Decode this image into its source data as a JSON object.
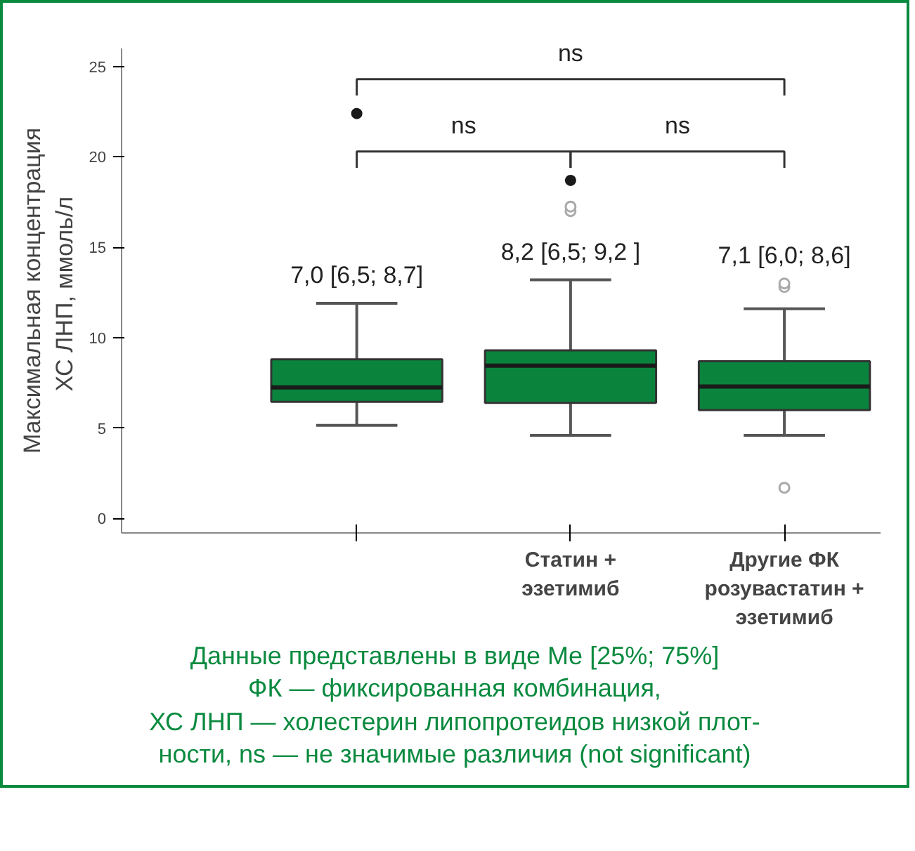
{
  "chart_data": {
    "type": "box",
    "ylabel": "Максимальная концентрация\nХС ЛНП,  ммоль/л",
    "categories": [
      null,
      "Статин +\nэзетимиб",
      "Другие ФК\nрозувастатин +\nэзетимиб"
    ],
    "series": [
      {
        "color": "#0a843d",
        "value_labels": [
          "7,0 [6,5; 8,7]",
          "8,2 [6,5; 9,2 ]",
          "7,1 [6,0; 8,6]"
        ],
        "boxes": [
          {
            "low": 5.15,
            "q1": 6.45,
            "median": 7.25,
            "q3": 8.8,
            "high": 11.9
          },
          {
            "low": 4.6,
            "q1": 6.4,
            "median": 8.45,
            "q3": 9.3,
            "high": 13.2,
            "outliers": [
              17.0,
              17.25
            ]
          },
          {
            "low": 4.6,
            "q1": 6.0,
            "median": 7.3,
            "q3": 8.7,
            "high": 11.6,
            "outliers": [
              12.8,
              13.0,
              1.7
            ]
          }
        ]
      },
      {
        "type": "scatter",
        "color": "#1a1a1a",
        "marker": "circle",
        "values": [
          22.4,
          18.7,
          null
        ]
      }
    ],
    "ylim": [
      -0.8,
      26
    ],
    "yticks": [
      0,
      5,
      10,
      15,
      20,
      25
    ],
    "grid": false,
    "annotations": [
      "ns",
      "ns",
      "ns",
      "Данные представлены в виде Me [25%; 75%]\nФК — фиксированная комбинация,\nХС ЛНП — холестерин липопротеидов низкой плот-\nности, ns — не значимые различия (not significant)"
    ]
  }
}
